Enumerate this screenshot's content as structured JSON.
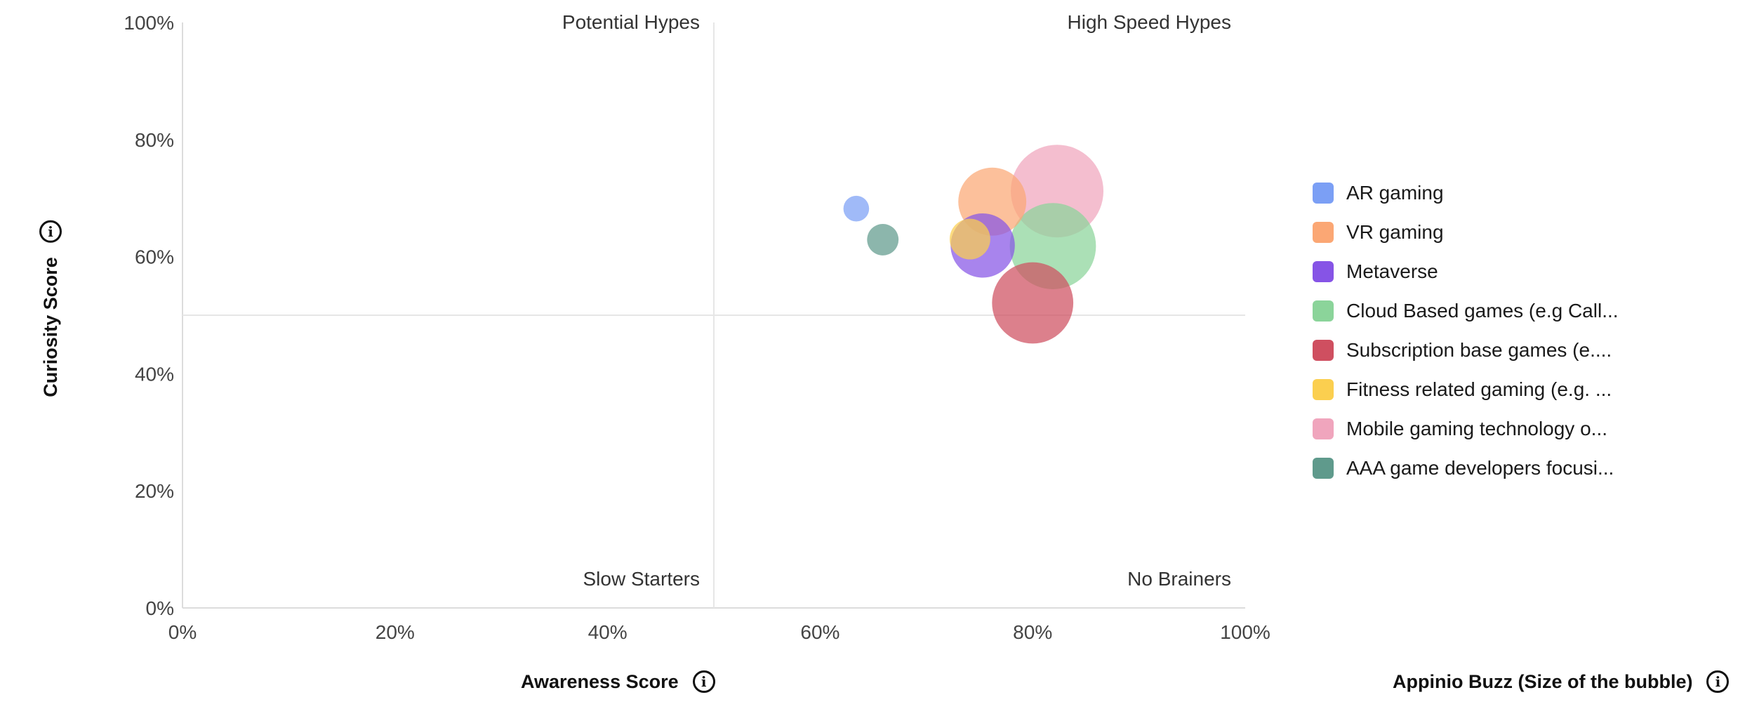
{
  "chart_data": {
    "type": "scatter",
    "title": "",
    "xlabel": "Awareness Score",
    "ylabel": "Curiosity Score",
    "size_label": "Appinio Buzz (Size of the bubble)",
    "xlim": [
      0,
      100
    ],
    "ylim": [
      0,
      100
    ],
    "x_ticks": [
      "0%",
      "20%",
      "40%",
      "60%",
      "80%",
      "100%"
    ],
    "y_ticks": [
      "0%",
      "20%",
      "40%",
      "60%",
      "80%",
      "100%"
    ],
    "quadrant_split": {
      "x": 50,
      "y": 50
    },
    "quadrants": {
      "top_left": "Potential Hypes",
      "top_right": "High Speed Hypes",
      "bottom_left": "Slow Starters",
      "bottom_right": "No Brainers"
    },
    "grid": false,
    "legend_position": "right",
    "series": [
      {
        "name": "AR gaming",
        "color": "#7b9ff5",
        "x": 63.4,
        "y": 68.2,
        "size": 4
      },
      {
        "name": "VR gaming",
        "color": "#fba774",
        "x": 76.2,
        "y": 69.4,
        "size": 28
      },
      {
        "name": "Metaverse",
        "color": "#8654e6",
        "x": 75.3,
        "y": 61.9,
        "size": 25
      },
      {
        "name": "Cloud Based games (e.g Call...",
        "color": "#8bd49a",
        "x": 81.9,
        "y": 61.8,
        "size": 45
      },
      {
        "name": "Subscription base games (e....",
        "color": "#cf4f60",
        "x": 80.0,
        "y": 52.1,
        "size": 40
      },
      {
        "name": "Fitness related gaming (e.g. ...",
        "color": "#fbcf4f",
        "x": 74.1,
        "y": 63.0,
        "size": 10
      },
      {
        "name": "Mobile gaming technology o...",
        "color": "#f0a5bd",
        "x": 82.3,
        "y": 71.2,
        "size": 52
      },
      {
        "name": "AAA game developers focusi...",
        "color": "#5f9a8c",
        "x": 65.9,
        "y": 62.9,
        "size": 6
      }
    ]
  }
}
